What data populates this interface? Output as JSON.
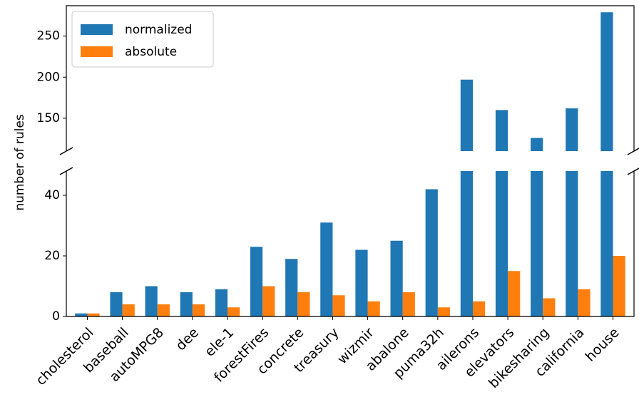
{
  "chart_data": {
    "type": "bar",
    "ylabel": "number of rules",
    "categories": [
      "cholesterol",
      "baseball",
      "autoMPG8",
      "dee",
      "ele-1",
      "forestFires",
      "concrete",
      "treasury",
      "wizmir",
      "abalone",
      "puma32h",
      "ailerons",
      "elevators",
      "bikesharing",
      "california",
      "house"
    ],
    "series": [
      {
        "name": "normalized",
        "color": "#1f77b4",
        "values": [
          1,
          8,
          10,
          8,
          9,
          23,
          19,
          31,
          22,
          25,
          42,
          197,
          160,
          126,
          162,
          279
        ]
      },
      {
        "name": "absolute",
        "color": "#ff7f0e",
        "values": [
          1,
          4,
          4,
          4,
          3,
          10,
          8,
          7,
          5,
          8,
          3,
          5,
          15,
          6,
          9,
          20
        ]
      }
    ],
    "broken_axis": true,
    "lower_panel": {
      "ylim": [
        0,
        48
      ],
      "ticks": [
        0,
        20,
        40
      ]
    },
    "upper_panel": {
      "ylim": [
        110,
        287
      ],
      "ticks": [
        150,
        200,
        250
      ]
    },
    "legend_position": "upper-left",
    "grid": false
  }
}
